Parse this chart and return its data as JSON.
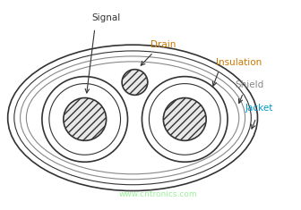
{
  "bg_color": "#ffffff",
  "edge_color": "#333333",
  "shield_color": "#888888",
  "watermark_color": "#90ee90",
  "watermark_text": "www.cntronics.com",
  "label_signal": "Signal",
  "label_drain": "Drain",
  "label_insulation": "Insulation",
  "label_shield": "Shield",
  "label_jacket": "Jacket",
  "label_color_signal": "#333333",
  "label_color_drain": "#cc7700",
  "label_color_insulation": "#cc7700",
  "label_color_shield": "#888888",
  "label_color_jacket": "#0099cc",
  "figsize": [
    3.36,
    2.35
  ],
  "dpi": 100,
  "xlim": [
    -1.9,
    2.3
  ],
  "ylim": [
    -1.25,
    1.45
  ]
}
